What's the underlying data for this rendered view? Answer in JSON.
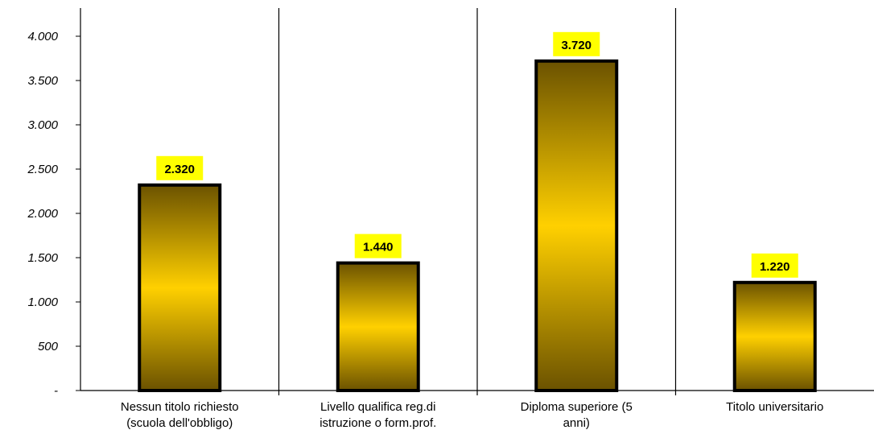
{
  "chart_data": {
    "type": "bar",
    "title": "",
    "xlabel": "",
    "ylabel": "",
    "ylim": [
      0,
      4000
    ],
    "y_ticks": [
      "-",
      "500",
      "1.000",
      "1.500",
      "2.000",
      "2.500",
      "3.000",
      "3.500",
      "4.000"
    ],
    "y_tick_values": [
      0,
      500,
      1000,
      1500,
      2000,
      2500,
      3000,
      3500,
      4000
    ],
    "categories": [
      [
        "Nessun titolo richiesto",
        "(scuola dell'obbligo)"
      ],
      [
        "Livello qualifica reg.di",
        "istruzione o form.prof."
      ],
      [
        "Diploma superiore (5",
        "anni)"
      ],
      [
        "Titolo universitario"
      ]
    ],
    "values": [
      2320,
      1440,
      3720,
      1220
    ],
    "value_labels": [
      "2.320",
      "1.440",
      "3.720",
      "1.220"
    ],
    "grid": false,
    "category_separators": true,
    "colors": {
      "bar_top": "#6b5200",
      "bar_mid": "#ffd000",
      "bar_bottom": "#6b5200",
      "bar_border": "#000000",
      "label_bg": "#ffff00"
    }
  }
}
